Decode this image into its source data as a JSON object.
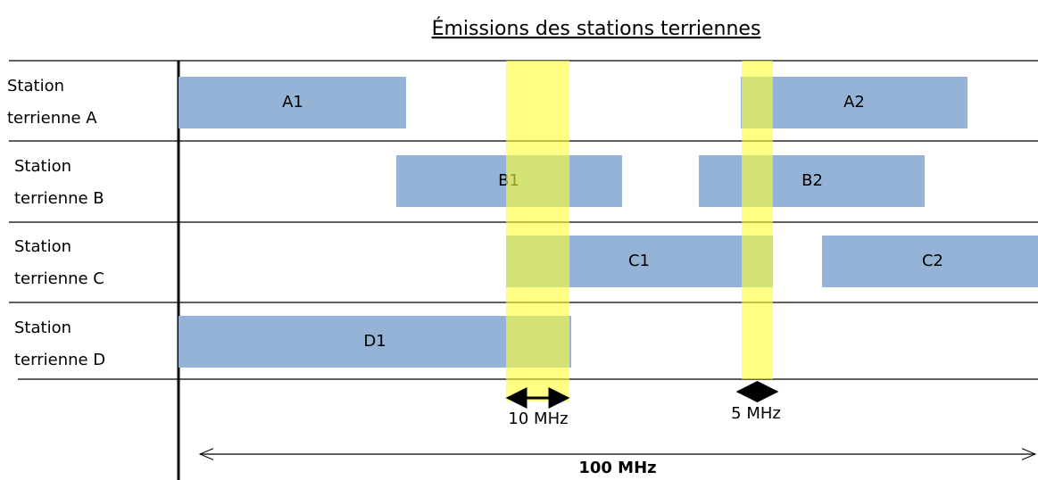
{
  "title": "Émissions des stations terriennes",
  "rows": [
    {
      "line1": "Station",
      "line2": "terrienne A"
    },
    {
      "line1": "Station",
      "line2": "terrienne B"
    },
    {
      "line1": "Station",
      "line2": "terrienne C"
    },
    {
      "line1": "Station",
      "line2": "terrienne D"
    }
  ],
  "blocks": [
    "A1",
    "A2",
    "B1",
    "B2",
    "C1",
    "C2",
    "D1"
  ],
  "bands": [
    "10 MHz",
    "5 MHz"
  ],
  "span": "100 MHz"
}
